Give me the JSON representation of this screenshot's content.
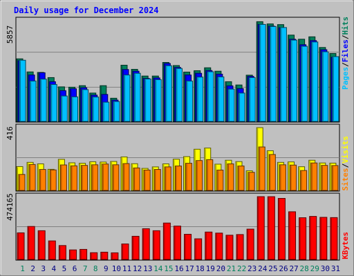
{
  "title": "Daily usage for December 2024",
  "colors": {
    "frame_bg": "#c0c0c0",
    "plot_bg": "#c0c0c0",
    "hits": "#00805c",
    "files": "#0000ff",
    "pages": "#00c0ff",
    "visits": "#ffff00",
    "sites": "#ff8000",
    "kbytes": "#ff0000",
    "title": "#0000ff",
    "axis_text": "#000000",
    "weekend_day": "#00805c",
    "weekday_day": "#000080"
  },
  "labels": {
    "top_max": "5857",
    "mid_max": "416",
    "bot_max": "474165",
    "legend_pages": "Pages",
    "legend_files": "Files",
    "legend_hits": "Hits",
    "legend_sites": "Sites",
    "legend_visits": "Visits",
    "legend_kbytes": "KBytes",
    "sep": "/"
  },
  "chart_data": {
    "type": "bar",
    "title": "Daily usage for December 2024",
    "categories": [
      "1",
      "2",
      "3",
      "4",
      "5",
      "6",
      "7",
      "8",
      "9",
      "10",
      "11",
      "12",
      "13",
      "14",
      "15",
      "16",
      "17",
      "18",
      "19",
      "20",
      "21",
      "22",
      "23",
      "24",
      "25",
      "26",
      "27",
      "28",
      "29",
      "30",
      "31"
    ],
    "weekend_days": [
      1,
      7,
      8,
      14,
      15,
      21,
      22,
      28,
      29
    ],
    "panels": [
      {
        "name": "hits-files-pages",
        "ymax": 5857,
        "series": [
          {
            "name": "Hits",
            "values": [
              3640,
              2880,
              2850,
              2550,
              2010,
              1990,
              2080,
              1650,
              2080,
              1350,
              3270,
              3030,
              2640,
              2640,
              3430,
              3250,
              2870,
              2950,
              3120,
              2920,
              2310,
              2120,
              2690,
              5800,
              5670,
              5630,
              5020,
              4780,
              4920,
              4300,
              3950
            ]
          },
          {
            "name": "Files",
            "values": [
              3530,
              2700,
              2830,
              2310,
              1790,
              1900,
              1960,
              1530,
              1570,
              1240,
              3020,
              2920,
              2500,
              2530,
              3370,
              3140,
              2700,
              2800,
              2960,
              2750,
              2070,
              1910,
              2620,
              5640,
              5540,
              5450,
              4780,
              4460,
              4700,
              4170,
              3730
            ]
          },
          {
            "name": "Pages",
            "values": [
              3560,
              2350,
              2460,
              2150,
              1480,
              1430,
              1850,
              1420,
              1120,
              1160,
              2700,
              2800,
              2470,
              2430,
              3240,
              3080,
              2350,
              2580,
              2890,
              2590,
              1880,
              1650,
              2550,
              5640,
              5520,
              5460,
              4730,
              4370,
              4620,
              4050,
              3770
            ]
          }
        ]
      },
      {
        "name": "visits-sites",
        "ymax": 416,
        "series": [
          {
            "name": "Visits",
            "values": [
              158,
              186,
              176,
              140,
              206,
              183,
              180,
              190,
              188,
              192,
              222,
              177,
              146,
              156,
              176,
              207,
              224,
              273,
              281,
              174,
              200,
              191,
              130,
              416,
              263,
              186,
              189,
              157,
              200,
              182,
              181
            ]
          },
          {
            "name": "Sites",
            "values": [
              106,
              172,
              139,
              136,
              169,
              163,
              166,
              170,
              175,
              170,
              178,
              149,
              135,
              139,
              156,
              162,
              180,
              198,
              204,
              135,
              176,
              162,
              120,
              288,
              238,
              170,
              168,
              132,
              182,
              166,
              165
            ]
          }
        ]
      },
      {
        "name": "kbytes",
        "ymax": 474165,
        "series": [
          {
            "name": "KBytes",
            "values": [
              200800,
              249000,
              217000,
              140000,
              105000,
              72000,
              76000,
              51000,
              55000,
              50000,
              117000,
              175000,
              232000,
              217000,
              275000,
              252000,
              190000,
              156000,
              207000,
              199000,
              183000,
              188000,
              229000,
              474165,
              474000,
              461000,
              360000,
              315000,
              325000,
              318000,
              316000
            ]
          }
        ]
      }
    ]
  }
}
